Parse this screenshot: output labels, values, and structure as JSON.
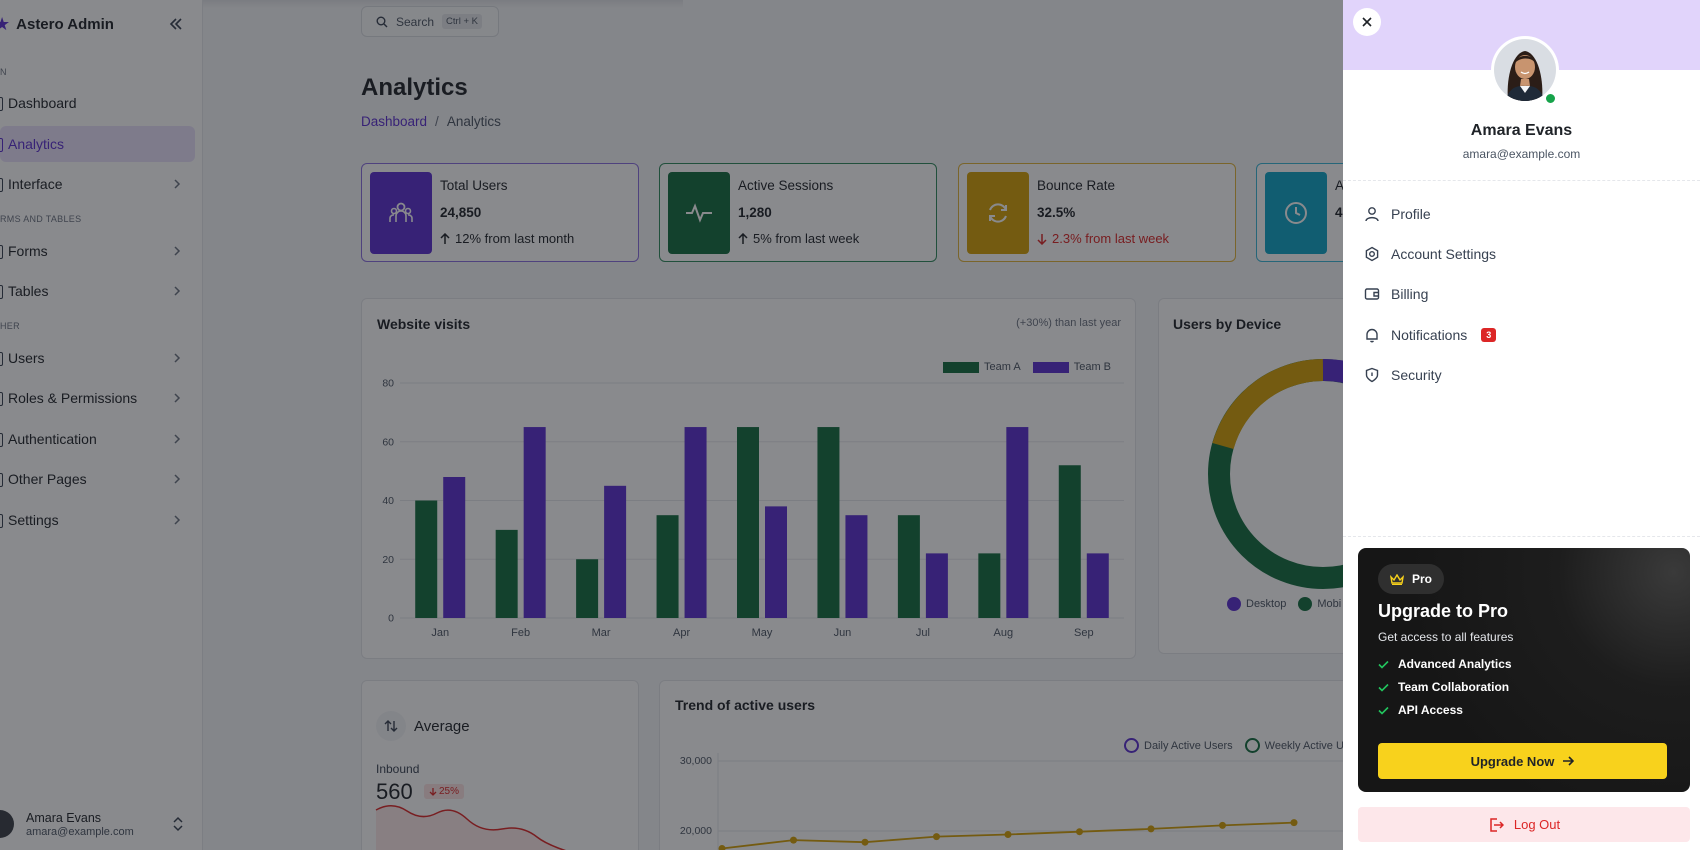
{
  "sidebar": {
    "brand": "Astero Admin",
    "sections": [
      "N",
      "RMS AND TABLES",
      "HER"
    ],
    "items": [
      {
        "label": "Dashboard"
      },
      {
        "label": "Analytics"
      },
      {
        "label": "Interface"
      },
      {
        "label": "Forms"
      },
      {
        "label": "Tables"
      },
      {
        "label": "Users"
      },
      {
        "label": "Roles & Permissions"
      },
      {
        "label": "Authentication"
      },
      {
        "label": "Other Pages"
      },
      {
        "label": "Settings"
      }
    ],
    "user": {
      "name": "Amara Evans",
      "email": "amara@example.com"
    }
  },
  "search": {
    "label": "Search",
    "shortcut": "Ctrl + K"
  },
  "page": {
    "title": "Analytics",
    "breadcrumb_root": "Dashboard",
    "breadcrumb_sep": "/",
    "breadcrumb_current": "Analytics"
  },
  "stats": [
    {
      "label": "Total Users",
      "value": "24,850",
      "change": "12% from last month",
      "trend": "up",
      "color": "#5b2fd1"
    },
    {
      "label": "Active Sessions",
      "value": "1,280",
      "change": "5% from last week",
      "trend": "up",
      "color": "#136c3f"
    },
    {
      "label": "Bounce Rate",
      "value": "32.5%",
      "change": "2.3% from last week",
      "trend": "down",
      "color": "#d4a106"
    },
    {
      "label": "A",
      "value": "4",
      "change": "",
      "trend": "up",
      "color": "#0ea5c6"
    }
  ],
  "website_visits": {
    "title": "Website visits",
    "subtitle": "(+30%) than last year"
  },
  "users_by_device": {
    "title": "Users by Device",
    "legend": [
      "Desktop",
      "Mobi"
    ]
  },
  "average": {
    "title": "Average",
    "inbound_label": "Inbound",
    "value": "560",
    "badge": "25%"
  },
  "trend": {
    "title": "Trend of active users",
    "legend": [
      "Daily Active Users",
      "Weekly Active U"
    ],
    "ticks": [
      "30,000",
      "20,000"
    ]
  },
  "chart_data": [
    {
      "type": "bar",
      "categories": [
        "Jan",
        "Feb",
        "Mar",
        "Apr",
        "May",
        "Jun",
        "Jul",
        "Aug",
        "Sep"
      ],
      "series": [
        {
          "name": "Team A",
          "values": [
            40,
            30,
            20,
            35,
            65,
            65,
            35,
            22,
            52
          ],
          "color": "#136c3f"
        },
        {
          "name": "Team B",
          "values": [
            48,
            65,
            45,
            65,
            38,
            35,
            22,
            65,
            22
          ],
          "color": "#5b2fd1"
        }
      ],
      "yticks": [
        "0",
        "20",
        "40",
        "60",
        "80"
      ],
      "ylim": [
        0,
        80
      ],
      "grid": true,
      "legend": "top-right"
    },
    {
      "type": "pie",
      "categories": [
        "Desktop",
        "Mobi"
      ],
      "colors": [
        "#5b2fd1",
        "#136c3f",
        "#d4a106"
      ],
      "note": "donut partially hidden behind the drawer"
    },
    {
      "type": "line",
      "series": [
        {
          "name": "Daily Active Users",
          "values": [
            17500,
            18700,
            18400,
            19200,
            19500,
            19900,
            20300,
            20800,
            21200
          ],
          "color": "#d4a106"
        }
      ],
      "ylim": [
        15000,
        30000
      ]
    }
  ],
  "drawer": {
    "name": "Amara Evans",
    "email": "amara@example.com",
    "menu": [
      {
        "label": "Profile",
        "icon": "user-icon"
      },
      {
        "label": "Account Settings",
        "icon": "gear-icon"
      },
      {
        "label": "Billing",
        "icon": "wallet-icon"
      },
      {
        "label": "Notifications",
        "icon": "bell-icon",
        "badge": "3"
      },
      {
        "label": "Security",
        "icon": "shield-icon"
      }
    ],
    "pro": {
      "pill": "Pro",
      "title": "Upgrade to Pro",
      "subtitle": "Get access to all features",
      "features": [
        "Advanced Analytics",
        "Team Collaboration",
        "API Access"
      ],
      "button": "Upgrade Now"
    },
    "logout": "Log Out"
  }
}
